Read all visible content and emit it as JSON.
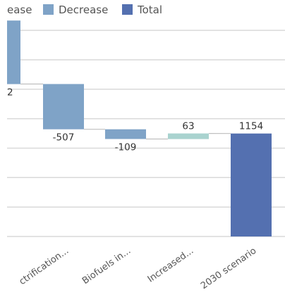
{
  "chart_data": {
    "type": "bar",
    "subtype": "waterfall",
    "categories": [
      "ctrification...",
      "Biofuels in...",
      "Increased...",
      "2030 scenario"
    ],
    "values": [
      -507,
      -109,
      63,
      1154
    ],
    "kinds": [
      "decrease",
      "decrease",
      "increase",
      "total"
    ],
    "partial_label": "2",
    "partial_bar": {
      "kind": "decrease",
      "start": 2420,
      "end": 1708
    },
    "data_labels": [
      "-507",
      "-109",
      "63",
      "1154"
    ],
    "legend": [
      {
        "label": "ease",
        "color": "",
        "kind": "increase"
      },
      {
        "label": "Decrease",
        "color": "#7fa3c7",
        "kind": "decrease"
      },
      {
        "label": "Total",
        "color": "#5470b0",
        "kind": "total"
      }
    ],
    "colors": {
      "increase": "#a9d3cf",
      "decrease": "#7fa3c7",
      "total": "#5470b0",
      "grid": "#d9d9d9",
      "connector": "#bfbfbf"
    },
    "ylim": [
      0,
      2650
    ],
    "grid": true,
    "legend_position": "top"
  }
}
